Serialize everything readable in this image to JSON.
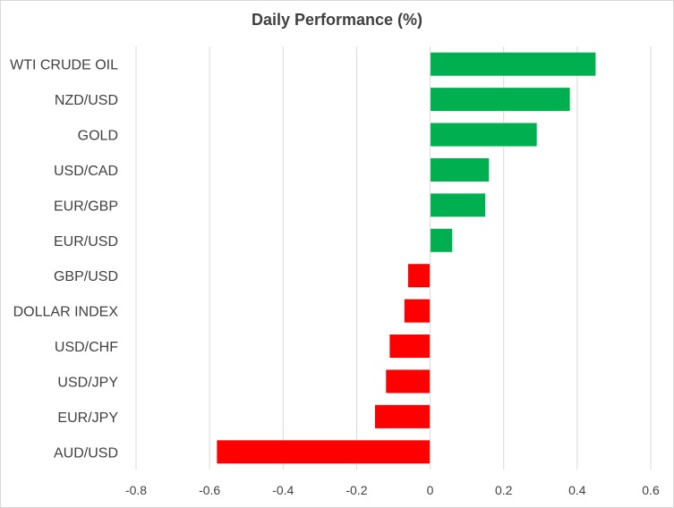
{
  "chart_data": {
    "type": "bar",
    "orientation": "horizontal",
    "title": "Daily Performance  (%)",
    "categories": [
      "WTI CRUDE OIL",
      "NZD/USD",
      "GOLD",
      "USD/CAD",
      "EUR/GBP",
      "EUR/USD",
      "GBP/USD",
      "DOLLAR INDEX",
      "USD/CHF",
      "USD/JPY",
      "EUR/JPY",
      "AUD/USD"
    ],
    "values": [
      0.45,
      0.38,
      0.29,
      0.16,
      0.15,
      0.06,
      -0.06,
      -0.07,
      -0.11,
      -0.12,
      -0.15,
      -0.58
    ],
    "xlim": [
      -0.8,
      0.6
    ],
    "xticks": [
      -0.8,
      -0.6,
      -0.4,
      -0.2,
      0,
      0.2,
      0.4,
      0.6
    ],
    "xtick_labels": [
      "-0.8",
      "-0.6",
      "-0.4",
      "-0.2",
      "0",
      "0.2",
      "0.4",
      "0.6"
    ],
    "grid": "vertical",
    "legend": "none",
    "colors": {
      "positive": "#00b050",
      "negative": "#ff0000",
      "grid": "#d9d9d9",
      "axis": "#d9d9d9",
      "text": "#404040"
    }
  }
}
